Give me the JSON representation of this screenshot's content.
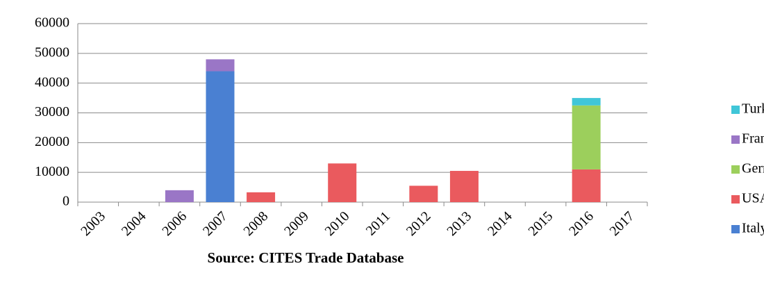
{
  "chart_data": {
    "type": "stacked_bar",
    "source": "Source: CITES Trade Database",
    "categories": [
      "2003",
      "2004",
      "2006",
      "2007",
      "2008",
      "2009",
      "2010",
      "2011",
      "2012",
      "2013",
      "2014",
      "2015",
      "2016",
      "2017"
    ],
    "series": [
      {
        "name": "Italy",
        "color": "#4a80d2",
        "values": [
          0,
          0,
          0,
          44000,
          0,
          0,
          0,
          0,
          0,
          0,
          0,
          0,
          0,
          0
        ]
      },
      {
        "name": "USA",
        "color": "#ea5a5e",
        "values": [
          0,
          0,
          0,
          0,
          3300,
          0,
          13000,
          0,
          5500,
          10500,
          0,
          0,
          11000,
          0
        ]
      },
      {
        "name": "Germany",
        "color": "#9ccf5c",
        "values": [
          0,
          0,
          0,
          0,
          0,
          0,
          0,
          0,
          0,
          0,
          0,
          0,
          21500,
          0
        ]
      },
      {
        "name": "France",
        "color": "#9a76c6",
        "values": [
          0,
          0,
          4000,
          4000,
          0,
          0,
          0,
          0,
          0,
          0,
          0,
          0,
          0,
          0
        ]
      },
      {
        "name": "Turkey",
        "color": "#40c6d8",
        "values": [
          0,
          0,
          0,
          0,
          0,
          0,
          0,
          0,
          0,
          0,
          0,
          0,
          2500,
          0
        ]
      }
    ],
    "ylim": [
      0,
      60000
    ],
    "yticks": [
      0,
      10000,
      20000,
      30000,
      40000,
      50000,
      60000
    ],
    "grid": true,
    "legend": "right"
  }
}
